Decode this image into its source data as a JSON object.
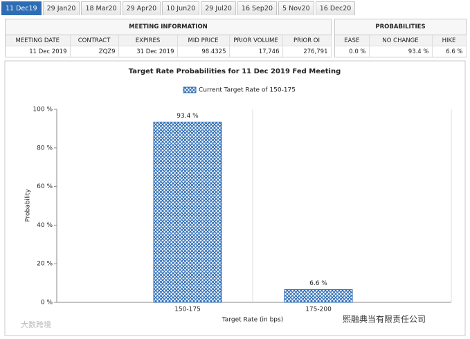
{
  "tabs": [
    "11 Dec19",
    "29 Jan20",
    "18 Mar20",
    "29 Apr20",
    "10 Jun20",
    "29 Jul20",
    "16 Sep20",
    "5 Nov20",
    "16 Dec20"
  ],
  "meeting_information": {
    "title": "MEETING INFORMATION",
    "columns": [
      "MEETING DATE",
      "CONTRACT",
      "EXPIRES",
      "MID PRICE",
      "PRIOR VOLUME",
      "PRIOR OI"
    ],
    "rows": [
      [
        "11 Dec 2019",
        "ZQZ9",
        "31 Dec 2019",
        "98.4325",
        "17,746",
        "276,791"
      ]
    ]
  },
  "probabilities": {
    "title": "PROBABILITIES",
    "columns": [
      "EASE",
      "NO CHANGE",
      "HIKE"
    ],
    "rows": [
      [
        "0.0 %",
        "93.4 %",
        "6.6 %"
      ]
    ]
  },
  "chart_data": {
    "type": "bar",
    "title": "Target Rate Probabilities for 11 Dec 2019 Fed Meeting",
    "x_label": "Target Rate (in bps)",
    "y_label": "Probability",
    "categories": [
      "150-175",
      "175-200"
    ],
    "series": [
      {
        "name": "Current Target Rate of 150-175",
        "color": "#2d6db5",
        "values": [
          93.4,
          6.6
        ],
        "value_labels": [
          "93.4 %",
          "6.6 %"
        ]
      }
    ],
    "ylim": [
      0,
      100
    ],
    "yticks": [
      {
        "value": 0,
        "label": "0 %"
      },
      {
        "value": 20,
        "label": "20 %"
      },
      {
        "value": 40,
        "label": "40 %"
      },
      {
        "value": 60,
        "label": "60 %"
      },
      {
        "value": 80,
        "label": "80 %"
      },
      {
        "value": 100,
        "label": "100 %"
      }
    ]
  },
  "watermarks": [
    "大数跨境",
    "熙融典当有限责任公司"
  ]
}
